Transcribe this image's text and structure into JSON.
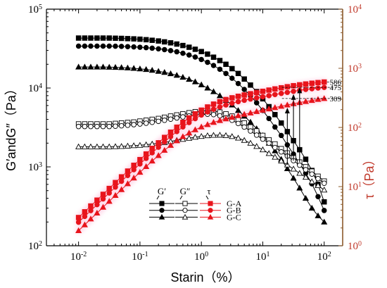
{
  "chart_data": {
    "type": "line",
    "xlabel": "Starin（%）",
    "ylabel_left": "G′andG″（Pa）",
    "ylabel_right": "τ（Pa）",
    "x_scale": "log",
    "y_left_scale": "log",
    "y_right_scale": "log",
    "xlim": [
      0.003,
      200
    ],
    "ylim_left": [
      100,
      100000
    ],
    "ylim_right": [
      1,
      10000
    ],
    "x_ticks": [
      {
        "value": 0.01,
        "base": "10",
        "exp": "-2"
      },
      {
        "value": 0.1,
        "base": "10",
        "exp": "-1"
      },
      {
        "value": 1,
        "base": "10",
        "exp": "0"
      },
      {
        "value": 10,
        "base": "10",
        "exp": "1"
      },
      {
        "value": 100,
        "base": "10",
        "exp": "2"
      }
    ],
    "y_left_ticks": [
      {
        "value": 100,
        "base": "10",
        "exp": "2"
      },
      {
        "value": 1000,
        "base": "10",
        "exp": "3"
      },
      {
        "value": 10000,
        "base": "10",
        "exp": "4"
      },
      {
        "value": 100000,
        "base": "10",
        "exp": "5"
      }
    ],
    "y_right_ticks": [
      {
        "value": 1,
        "base": "10",
        "exp": "0"
      },
      {
        "value": 10,
        "base": "10",
        "exp": "1"
      },
      {
        "value": 100,
        "base": "10",
        "exp": "2"
      },
      {
        "value": 1000,
        "base": "10",
        "exp": "3"
      },
      {
        "value": 10000,
        "base": "10",
        "exp": "4"
      }
    ],
    "x": [
      0.01,
      0.0126,
      0.0158,
      0.02,
      0.0251,
      0.0316,
      0.0398,
      0.05,
      0.0631,
      0.0794,
      0.1,
      0.126,
      0.158,
      0.2,
      0.251,
      0.316,
      0.398,
      0.5,
      0.631,
      0.794,
      1,
      1.26,
      1.58,
      2,
      2.51,
      3.16,
      3.98,
      5,
      6.31,
      7.94,
      10,
      12.6,
      15.8,
      20,
      25.1,
      31.6,
      39.8,
      50,
      63.1,
      79.4,
      100
    ],
    "series": [
      {
        "group": "G-A",
        "kind": "storage",
        "color": "#000000",
        "marker": "square",
        "filled": true,
        "values": [
          43000,
          43000,
          43000,
          43000,
          43000,
          43000,
          42800,
          42600,
          42300,
          42000,
          41600,
          41000,
          40300,
          39500,
          38500,
          37400,
          36100,
          34600,
          32900,
          31000,
          29000,
          26900,
          24600,
          22300,
          20000,
          17600,
          15300,
          13000,
          10900,
          9000,
          7300,
          5800,
          4600,
          3600,
          2800,
          2150,
          1650,
          1250,
          900,
          600,
          360
        ]
      },
      {
        "group": "G-B",
        "kind": "storage",
        "color": "#000000",
        "marker": "circle",
        "filled": true,
        "values": [
          34000,
          34000,
          34000,
          34000,
          34000,
          34000,
          33900,
          33700,
          33500,
          33200,
          32900,
          32500,
          32000,
          31400,
          30700,
          29800,
          28800,
          27600,
          26200,
          24700,
          23000,
          21200,
          19300,
          17300,
          15300,
          13300,
          11400,
          9600,
          8000,
          6500,
          5200,
          4100,
          3200,
          2500,
          1900,
          1450,
          1100,
          830,
          610,
          420,
          280
        ]
      },
      {
        "group": "G-C",
        "kind": "storage",
        "color": "#000000",
        "marker": "triangle",
        "filled": true,
        "values": [
          18500,
          18500,
          18500,
          18500,
          18500,
          18400,
          18300,
          18200,
          18000,
          17800,
          17500,
          17200,
          16800,
          16300,
          15800,
          15200,
          14500,
          13700,
          12900,
          12000,
          11000,
          10000,
          9000,
          8000,
          7000,
          6100,
          5200,
          4400,
          3700,
          3050,
          2500,
          2000,
          1600,
          1250,
          950,
          720,
          540,
          400,
          300,
          240,
          200
        ]
      },
      {
        "group": "G-A",
        "kind": "loss",
        "color": "#000000",
        "marker": "square",
        "filled": false,
        "values": [
          3500,
          3500,
          3500,
          3500,
          3500,
          3500,
          3550,
          3600,
          3650,
          3700,
          3800,
          3900,
          4000,
          4100,
          4250,
          4400,
          4550,
          4700,
          4850,
          5000,
          5100,
          5150,
          5100,
          4950,
          4700,
          4400,
          4000,
          3600,
          3200,
          2850,
          2500,
          2200,
          1950,
          1700,
          1500,
          1300,
          1150,
          1000,
          880,
          760,
          660
        ]
      },
      {
        "group": "G-B",
        "kind": "loss",
        "color": "#000000",
        "marker": "circle",
        "filled": false,
        "values": [
          3250,
          3250,
          3250,
          3250,
          3250,
          3250,
          3280,
          3320,
          3370,
          3430,
          3500,
          3580,
          3670,
          3780,
          3900,
          4030,
          4170,
          4300,
          4430,
          4550,
          4620,
          4650,
          4600,
          4450,
          4200,
          3900,
          3550,
          3200,
          2850,
          2530,
          2250,
          2000,
          1760,
          1550,
          1370,
          1200,
          1050,
          920,
          810,
          710,
          620
        ]
      },
      {
        "group": "G-C",
        "kind": "loss",
        "color": "#000000",
        "marker": "triangle",
        "filled": false,
        "values": [
          1800,
          1800,
          1800,
          1800,
          1800,
          1800,
          1810,
          1820,
          1840,
          1860,
          1880,
          1910,
          1950,
          1990,
          2040,
          2100,
          2170,
          2240,
          2310,
          2380,
          2440,
          2490,
          2520,
          2530,
          2500,
          2430,
          2320,
          2170,
          2000,
          1820,
          1650,
          1480,
          1330,
          1190,
          1060,
          940,
          830,
          740,
          650,
          580,
          510
        ]
      },
      {
        "group": "G-A",
        "kind": "stress",
        "color": "#e8141c",
        "marker": "square",
        "filled": true,
        "axis": "right",
        "values": [
          3.0,
          3.75,
          4.7,
          5.9,
          7.4,
          9.3,
          11.7,
          14.6,
          18.3,
          22.9,
          28.6,
          35.6,
          44.3,
          55,
          67.8,
          83.2,
          101,
          122,
          145,
          170,
          196,
          222,
          248,
          273,
          296,
          317,
          336,
          354,
          371,
          389,
          408,
          428,
          448,
          468,
          488,
          508,
          526,
          543,
          559,
          573,
          586
        ]
      },
      {
        "group": "G-B",
        "kind": "stress",
        "color": "#e8141c",
        "marker": "circle",
        "filled": true,
        "axis": "right",
        "values": [
          2.5,
          3.13,
          3.93,
          4.95,
          6.2,
          7.8,
          9.8,
          12.3,
          15.4,
          19.3,
          24.1,
          30,
          37.3,
          46.3,
          57.1,
          70,
          85.1,
          102,
          121,
          141,
          162,
          183,
          203,
          222,
          240,
          257,
          273,
          288,
          302,
          316,
          330,
          345,
          360,
          376,
          392,
          408,
          424,
          439,
          452,
          464,
          475
        ]
      },
      {
        "group": "G-C",
        "kind": "stress",
        "color": "#e8141c",
        "marker": "triangle",
        "filled": true,
        "axis": "right",
        "values": [
          1.8,
          2.26,
          2.84,
          3.57,
          4.49,
          5.65,
          7.1,
          8.9,
          11.2,
          14.0,
          17.5,
          21.8,
          27.1,
          33.5,
          41.1,
          49.8,
          59.5,
          69.9,
          80.6,
          91.4,
          102,
          112,
          122,
          131,
          140,
          149,
          158,
          167,
          176,
          186,
          196,
          206,
          217,
          228,
          240,
          252,
          264,
          275,
          286,
          298,
          309
        ]
      }
    ],
    "annotations": [
      {
        "label": "586",
        "value": 586
      },
      {
        "label": "475",
        "value": 475
      },
      {
        "label": "309",
        "value": 309
      }
    ],
    "crossover_arrows": [
      {
        "group": "G-C",
        "x": 25.1,
        "from_modulus": 1060,
        "to_stress": 240
      },
      {
        "group": "G-B",
        "x": 31.6,
        "from_modulus": 1200,
        "to_stress": 408
      },
      {
        "group": "G-A",
        "x": 39.8,
        "from_modulus": 1150,
        "to_stress": 526
      }
    ],
    "legend": {
      "placement": "bottom-right",
      "headers": [
        "G′",
        "G″",
        "τ"
      ],
      "rows": [
        {
          "label": "G-A",
          "marker": "square"
        },
        {
          "label": "G-B",
          "marker": "circle"
        },
        {
          "label": "G-C",
          "marker": "triangle"
        }
      ]
    },
    "colors": {
      "left_axis": "#000000",
      "right_axis": "#c0392b",
      "right_axis_line": "#8b5a2b",
      "stress": "#e8141c",
      "highlight": "#ffd6e7"
    },
    "grid": false
  }
}
